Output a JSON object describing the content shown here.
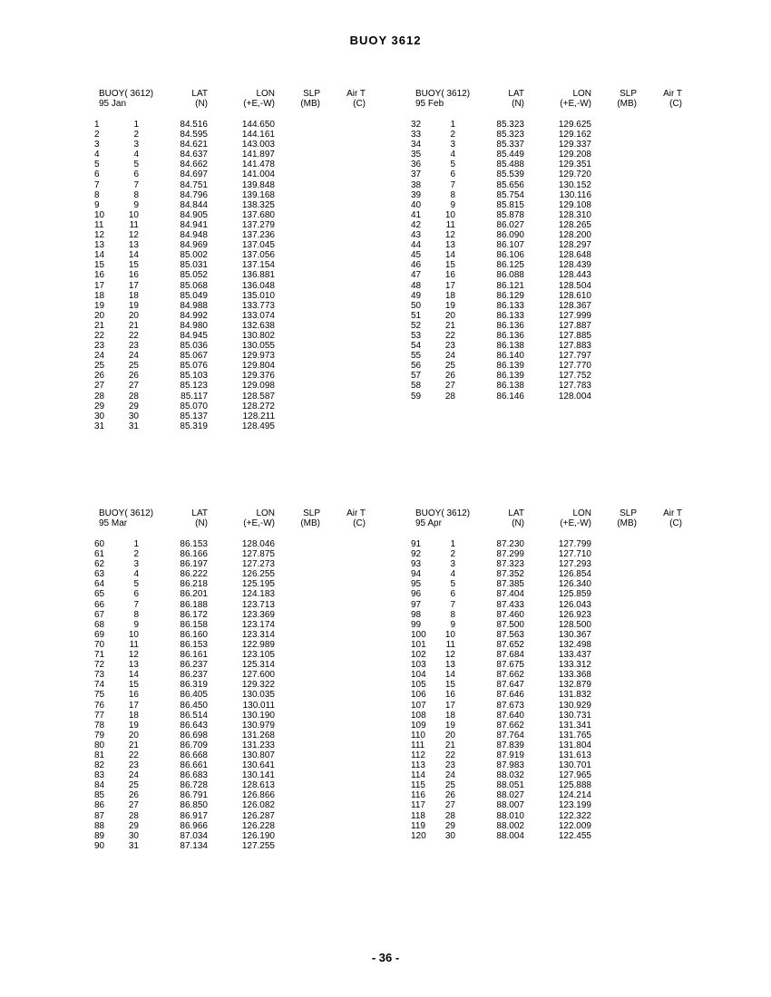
{
  "title": "BUOY 3612",
  "page_number": "- 36 -",
  "headers": {
    "buoy": "BUOY( 3612)",
    "lat": "LAT",
    "lat_unit": "(N)",
    "lon": "LON",
    "lon_unit": "(+E,-W)",
    "slp": "SLP",
    "slp_unit": "(MB)",
    "airt": "Air T",
    "airt_unit": "(C)"
  },
  "tables": [
    {
      "month": "95 Jan",
      "rows": [
        [
          "1",
          "1",
          "84.516",
          "144.650"
        ],
        [
          "2",
          "2",
          "84.595",
          "144.161"
        ],
        [
          "3",
          "3",
          "84.621",
          "143.003"
        ],
        [
          "4",
          "4",
          "84.637",
          "141.897"
        ],
        [
          "5",
          "5",
          "84.662",
          "141.478"
        ],
        [
          "6",
          "6",
          "84.697",
          "141.004"
        ],
        [
          "7",
          "7",
          "84.751",
          "139.848"
        ],
        [
          "8",
          "8",
          "84.796",
          "139.168"
        ],
        [
          "9",
          "9",
          "84.844",
          "138.325"
        ],
        [
          "10",
          "10",
          "84.905",
          "137.680"
        ],
        [
          "11",
          "11",
          "84.941",
          "137.279"
        ],
        [
          "12",
          "12",
          "84.948",
          "137.236"
        ],
        [
          "13",
          "13",
          "84.969",
          "137.045"
        ],
        [
          "14",
          "14",
          "85.002",
          "137.056"
        ],
        [
          "15",
          "15",
          "85.031",
          "137.154"
        ],
        [
          "16",
          "16",
          "85.052",
          "136.881"
        ],
        [
          "17",
          "17",
          "85.068",
          "136.048"
        ],
        [
          "18",
          "18",
          "85.049",
          "135.010"
        ],
        [
          "19",
          "19",
          "84.988",
          "133.773"
        ],
        [
          "20",
          "20",
          "84.992",
          "133.074"
        ],
        [
          "21",
          "21",
          "84.980",
          "132.638"
        ],
        [
          "22",
          "22",
          "84.945",
          "130.802"
        ],
        [
          "23",
          "23",
          "85.036",
          "130.055"
        ],
        [
          "24",
          "24",
          "85.067",
          "129.973"
        ],
        [
          "25",
          "25",
          "85.076",
          "129.804"
        ],
        [
          "26",
          "26",
          "85.103",
          "129.376"
        ],
        [
          "27",
          "27",
          "85.123",
          "129.098"
        ],
        [
          "28",
          "28",
          "85.117",
          "128.587"
        ],
        [
          "29",
          "29",
          "85.070",
          "128.272"
        ],
        [
          "30",
          "30",
          "85.137",
          "128.211"
        ],
        [
          "31",
          "31",
          "85.319",
          "128.495"
        ]
      ]
    },
    {
      "month": "95 Feb",
      "rows": [
        [
          "32",
          "1",
          "85.323",
          "129.625"
        ],
        [
          "33",
          "2",
          "85.323",
          "129.162"
        ],
        [
          "34",
          "3",
          "85.337",
          "129.337"
        ],
        [
          "35",
          "4",
          "85.449",
          "129.208"
        ],
        [
          "36",
          "5",
          "85.488",
          "129.351"
        ],
        [
          "37",
          "6",
          "85.539",
          "129.720"
        ],
        [
          "38",
          "7",
          "85.656",
          "130.152"
        ],
        [
          "39",
          "8",
          "85.754",
          "130.116"
        ],
        [
          "40",
          "9",
          "85.815",
          "129.108"
        ],
        [
          "41",
          "10",
          "85.878",
          "128.310"
        ],
        [
          "42",
          "11",
          "86.027",
          "128.265"
        ],
        [
          "43",
          "12",
          "86.090",
          "128.200"
        ],
        [
          "44",
          "13",
          "86.107",
          "128.297"
        ],
        [
          "45",
          "14",
          "86.106",
          "128.648"
        ],
        [
          "46",
          "15",
          "86.125",
          "128.439"
        ],
        [
          "47",
          "16",
          "86.088",
          "128.443"
        ],
        [
          "48",
          "17",
          "86.121",
          "128.504"
        ],
        [
          "49",
          "18",
          "86.129",
          "128.610"
        ],
        [
          "50",
          "19",
          "86.133",
          "128.367"
        ],
        [
          "51",
          "20",
          "86.133",
          "127.999"
        ],
        [
          "52",
          "21",
          "86.136",
          "127.887"
        ],
        [
          "53",
          "22",
          "86.136",
          "127.885"
        ],
        [
          "54",
          "23",
          "86.138",
          "127.883"
        ],
        [
          "55",
          "24",
          "86.140",
          "127.797"
        ],
        [
          "56",
          "25",
          "86.139",
          "127.770"
        ],
        [
          "57",
          "26",
          "86.139",
          "127.752"
        ],
        [
          "58",
          "27",
          "86.138",
          "127.783"
        ],
        [
          "59",
          "28",
          "86.146",
          "128.004"
        ]
      ]
    },
    {
      "month": "95 Mar",
      "rows": [
        [
          "60",
          "1",
          "86.153",
          "128.046"
        ],
        [
          "61",
          "2",
          "86.166",
          "127.875"
        ],
        [
          "62",
          "3",
          "86.197",
          "127.273"
        ],
        [
          "63",
          "4",
          "86.222",
          "126.255"
        ],
        [
          "64",
          "5",
          "86.218",
          "125.195"
        ],
        [
          "65",
          "6",
          "86.201",
          "124.183"
        ],
        [
          "66",
          "7",
          "86.188",
          "123.713"
        ],
        [
          "67",
          "8",
          "86.172",
          "123.369"
        ],
        [
          "68",
          "9",
          "86.158",
          "123.174"
        ],
        [
          "69",
          "10",
          "86.160",
          "123.314"
        ],
        [
          "70",
          "11",
          "86.153",
          "122.989"
        ],
        [
          "71",
          "12",
          "86.161",
          "123.105"
        ],
        [
          "72",
          "13",
          "86.237",
          "125.314"
        ],
        [
          "73",
          "14",
          "86.237",
          "127.600"
        ],
        [
          "74",
          "15",
          "86.319",
          "129.322"
        ],
        [
          "75",
          "16",
          "86.405",
          "130.035"
        ],
        [
          "76",
          "17",
          "86.450",
          "130.011"
        ],
        [
          "77",
          "18",
          "86.514",
          "130.190"
        ],
        [
          "78",
          "19",
          "86.643",
          "130.979"
        ],
        [
          "79",
          "20",
          "86.698",
          "131.268"
        ],
        [
          "80",
          "21",
          "86.709",
          "131.233"
        ],
        [
          "81",
          "22",
          "86.668",
          "130.807"
        ],
        [
          "82",
          "23",
          "86.661",
          "130.641"
        ],
        [
          "83",
          "24",
          "86.683",
          "130.141"
        ],
        [
          "84",
          "25",
          "86.728",
          "128.613"
        ],
        [
          "85",
          "26",
          "86.791",
          "126.866"
        ],
        [
          "86",
          "27",
          "86.850",
          "126.082"
        ],
        [
          "87",
          "28",
          "86.917",
          "126.287"
        ],
        [
          "88",
          "29",
          "86.966",
          "126.228"
        ],
        [
          "89",
          "30",
          "87.034",
          "126.190"
        ],
        [
          "90",
          "31",
          "87.134",
          "127.255"
        ]
      ]
    },
    {
      "month": "95 Apr",
      "rows": [
        [
          "91",
          "1",
          "87.230",
          "127.799"
        ],
        [
          "92",
          "2",
          "87.299",
          "127.710"
        ],
        [
          "93",
          "3",
          "87.323",
          "127.293"
        ],
        [
          "94",
          "4",
          "87.352",
          "126.854"
        ],
        [
          "95",
          "5",
          "87.385",
          "126.340"
        ],
        [
          "96",
          "6",
          "87.404",
          "125.859"
        ],
        [
          "97",
          "7",
          "87.433",
          "126.043"
        ],
        [
          "98",
          "8",
          "87.460",
          "126.923"
        ],
        [
          "99",
          "9",
          "87.500",
          "128.500"
        ],
        [
          "100",
          "10",
          "87.563",
          "130.367"
        ],
        [
          "101",
          "11",
          "87.652",
          "132.498"
        ],
        [
          "102",
          "12",
          "87.684",
          "133.437"
        ],
        [
          "103",
          "13",
          "87.675",
          "133.312"
        ],
        [
          "104",
          "14",
          "87.662",
          "133.368"
        ],
        [
          "105",
          "15",
          "87.647",
          "132.879"
        ],
        [
          "106",
          "16",
          "87.646",
          "131.832"
        ],
        [
          "107",
          "17",
          "87.673",
          "130.929"
        ],
        [
          "108",
          "18",
          "87.640",
          "130.731"
        ],
        [
          "109",
          "19",
          "87.662",
          "131.341"
        ],
        [
          "110",
          "20",
          "87.764",
          "131.765"
        ],
        [
          "111",
          "21",
          "87.839",
          "131.804"
        ],
        [
          "112",
          "22",
          "87.919",
          "131.613"
        ],
        [
          "113",
          "23",
          "87.983",
          "130.701"
        ],
        [
          "114",
          "24",
          "88.032",
          "127.965"
        ],
        [
          "115",
          "25",
          "88.051",
          "125.888"
        ],
        [
          "116",
          "26",
          "88.027",
          "124.214"
        ],
        [
          "117",
          "27",
          "88.007",
          "123.199"
        ],
        [
          "118",
          "28",
          "88.010",
          "122.322"
        ],
        [
          "119",
          "29",
          "88.002",
          "122.009"
        ],
        [
          "120",
          "30",
          "88.004",
          "122.455"
        ]
      ]
    }
  ]
}
